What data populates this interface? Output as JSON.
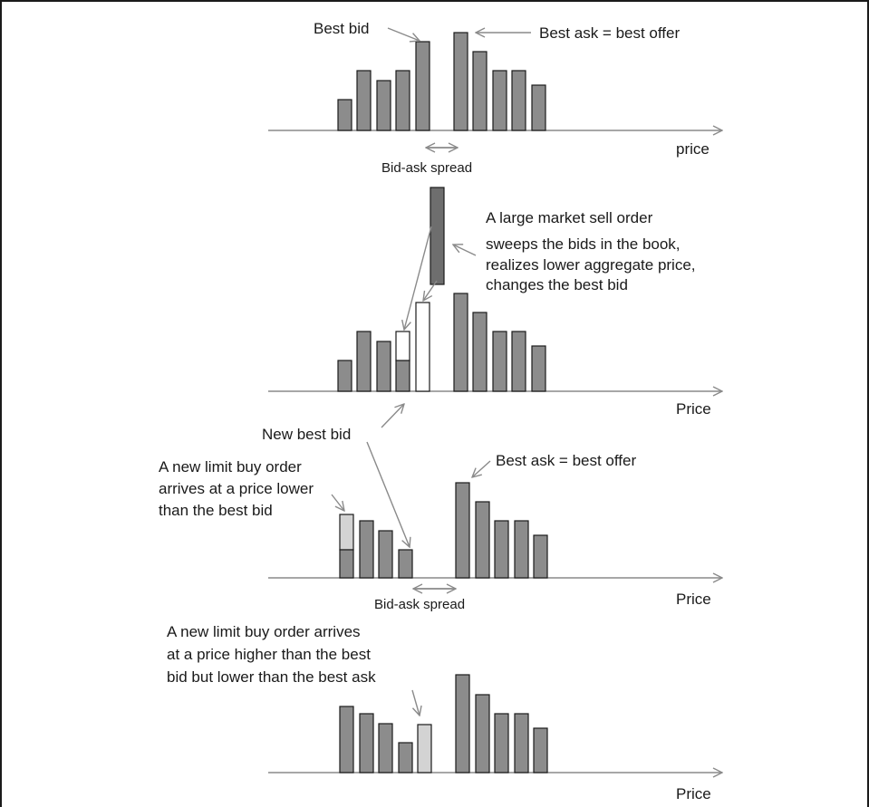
{
  "panel1": {
    "best_bid": "Best bid",
    "best_ask": "Best ask = best offer",
    "axis_label": "price",
    "spread_label": "Bid-ask spread"
  },
  "panel2": {
    "note_lines": [
      "A large market sell order",
      "sweeps the bids in the book,",
      "realizes lower aggregate price,",
      "changes the best bid"
    ],
    "axis_label": "Price"
  },
  "panel3": {
    "new_best_bid": "New best bid",
    "note_lines": [
      "A new limit buy order",
      "arrives at a price lower",
      "than the best bid"
    ],
    "best_ask": "Best ask = best offer",
    "axis_label": "Price",
    "spread_label": "Bid-ask spread"
  },
  "panel4": {
    "note_lines": [
      "A new limit buy order arrives",
      "at a price higher than the best",
      "bid but lower than the best ask"
    ],
    "axis_label": "Price"
  },
  "colors": {
    "order_bar": "#8c8c8c",
    "market_order": "#6e6e6e",
    "new_limit_order": "#d3d3d3",
    "removed_volume": "#ffffff",
    "arrow": "#8a8a8a"
  }
}
